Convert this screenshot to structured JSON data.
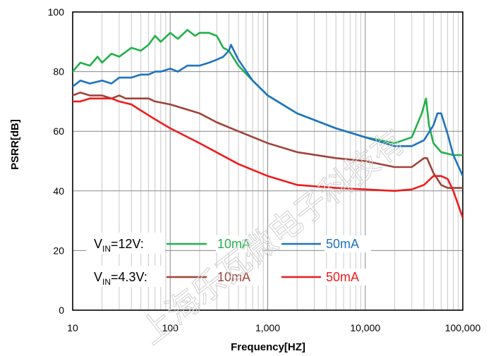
{
  "chart_data": {
    "type": "line",
    "title": "",
    "xlabel": "Frequency[HZ]",
    "ylabel": "PSRR[dB]",
    "xscale": "log",
    "xlim": [
      10,
      100000
    ],
    "ylim": [
      0,
      100
    ],
    "grid": true,
    "minor_grid_x": true,
    "x_tick_labels": [
      "10",
      "100",
      "1,000",
      "10,000",
      "100,000"
    ],
    "y_tick_labels": [
      "0",
      "20",
      "40",
      "60",
      "80",
      "100"
    ],
    "legend_placement": "bottom-left",
    "legend": [
      {
        "condition": "V_IN=12V:",
        "cond_main": "V",
        "cond_sub": "IN",
        "cond_rest": "=12V:",
        "entries": [
          {
            "label": "10mA",
            "color": "#22b04a"
          },
          {
            "label": "50mA",
            "color": "#1f73c0"
          }
        ]
      },
      {
        "condition": "V_IN=4.3V:",
        "cond_main": "V",
        "cond_sub": "IN",
        "cond_rest": "=4.3V:",
        "entries": [
          {
            "label": "10mA",
            "color": "#a0433a"
          },
          {
            "label": "50mA",
            "color": "#ee1c1c"
          }
        ]
      }
    ],
    "series": [
      {
        "name": "VIN=12V 10mA",
        "color": "#22b04a",
        "x": [
          10,
          12,
          15,
          18,
          20,
          25,
          30,
          40,
          50,
          60,
          70,
          80,
          100,
          120,
          150,
          180,
          200,
          250,
          300,
          350,
          400,
          500,
          700,
          1000,
          2000,
          5000,
          10000,
          20000,
          30000,
          38000,
          42000,
          45000,
          50000,
          60000,
          80000,
          100000
        ],
        "y": [
          80,
          83,
          82,
          85,
          83,
          86,
          85,
          88,
          87,
          89,
          92,
          90,
          93,
          91,
          94,
          92,
          93,
          93,
          92,
          88,
          87,
          82,
          77,
          72,
          66,
          61,
          58,
          56,
          58,
          66,
          71,
          62,
          56,
          53,
          52,
          52
        ]
      },
      {
        "name": "VIN=12V 50mA",
        "color": "#1f73c0",
        "x": [
          10,
          12,
          15,
          20,
          25,
          30,
          40,
          50,
          60,
          70,
          80,
          100,
          120,
          150,
          200,
          250,
          300,
          350,
          400,
          420,
          500,
          700,
          1000,
          2000,
          5000,
          10000,
          20000,
          30000,
          40000,
          50000,
          55000,
          60000,
          70000,
          80000,
          100000
        ],
        "y": [
          75,
          77,
          76,
          77,
          76,
          78,
          78,
          79,
          79,
          80,
          80,
          81,
          80,
          82,
          82,
          83,
          84,
          85,
          87,
          89,
          84,
          77,
          72,
          66,
          61,
          58,
          55,
          55,
          57,
          62,
          66,
          66,
          59,
          52,
          45
        ]
      },
      {
        "name": "VIN=4.3V 10mA",
        "color": "#a0433a",
        "x": [
          10,
          12,
          15,
          20,
          25,
          30,
          35,
          40,
          50,
          60,
          70,
          100,
          200,
          300,
          500,
          1000,
          2000,
          5000,
          10000,
          20000,
          30000,
          40000,
          43000,
          50000,
          60000,
          70000,
          80000,
          100000
        ],
        "y": [
          72,
          73,
          72,
          72,
          71,
          72,
          71,
          71,
          71,
          71,
          70,
          69,
          66,
          63,
          60,
          56,
          53,
          51,
          50,
          48,
          48,
          51,
          51,
          46,
          42,
          41,
          41,
          41
        ]
      },
      {
        "name": "VIN=4.3V 50mA",
        "color": "#ee1c1c",
        "x": [
          10,
          12,
          15,
          20,
          25,
          30,
          40,
          50,
          70,
          100,
          200,
          500,
          1000,
          2000,
          5000,
          10000,
          20000,
          30000,
          40000,
          50000,
          60000,
          70000,
          80000,
          100000
        ],
        "y": [
          70,
          70,
          71,
          71,
          71,
          70,
          69,
          67,
          64,
          61,
          56,
          49,
          45,
          42,
          41,
          40.5,
          40,
          40.5,
          42,
          45,
          45,
          44,
          40,
          31
        ]
      }
    ]
  },
  "watermark": "上海乐瓦微电子科技有"
}
